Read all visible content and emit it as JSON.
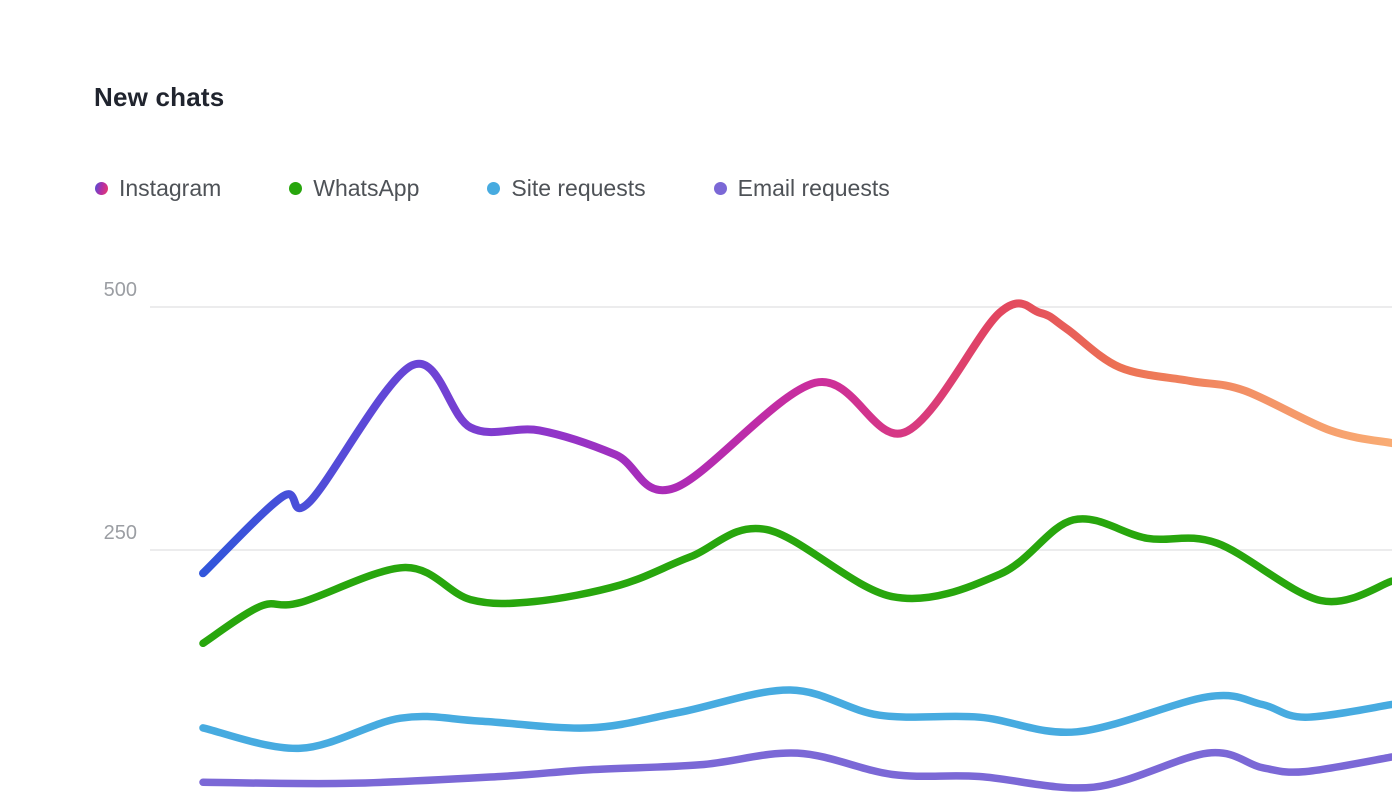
{
  "header": {
    "title": "New chats"
  },
  "legend": {
    "items": [
      {
        "label": "Instagram",
        "dot_gradient": [
          "#4a52d9",
          "#b12fa6",
          "#ed3a67"
        ]
      },
      {
        "label": "WhatsApp",
        "color": "#28a60d"
      },
      {
        "label": "Site requests",
        "color": "#47abe0"
      },
      {
        "label": "Email requests",
        "color": "#7b68d6"
      }
    ]
  },
  "chart_data": {
    "type": "line",
    "title": "New chats",
    "xlabel": "",
    "ylabel": "",
    "x_axis": {
      "labels_visible": false
    },
    "y_axis": {
      "min": 0,
      "max_visible": 520,
      "grid": true,
      "ticks": [
        {
          "value": 500,
          "label": "500"
        },
        {
          "value": 250,
          "label": "250"
        }
      ]
    },
    "legend_position": "top",
    "colors": {
      "grid_line": "#e5e5e7",
      "tick_text": "#9b9ea3",
      "legend_text": "#4e5257",
      "title_text": "#20242e",
      "background": "#ffffff"
    },
    "series": [
      {
        "name": "Instagram",
        "stroke": "gradient",
        "stroke_width": 8,
        "gradient_stops": [
          {
            "at": 0.0,
            "color": "#3156db"
          },
          {
            "at": 0.18,
            "color": "#6a45d6"
          },
          {
            "at": 0.3,
            "color": "#9334c8"
          },
          {
            "at": 0.4,
            "color": "#ae2bb5"
          },
          {
            "at": 0.52,
            "color": "#cc2e9b"
          },
          {
            "at": 0.59,
            "color": "#d73983"
          },
          {
            "at": 0.67,
            "color": "#e2465f"
          },
          {
            "at": 0.77,
            "color": "#ec7154"
          },
          {
            "at": 0.88,
            "color": "#f39166"
          },
          {
            "at": 1.0,
            "color": "#f9ac74"
          }
        ],
        "points": [
          {
            "x": 0.0,
            "v": 226
          },
          {
            "x": 0.067,
            "v": 305
          },
          {
            "x": 0.09,
            "v": 300
          },
          {
            "x": 0.176,
            "v": 440
          },
          {
            "x": 0.225,
            "v": 376
          },
          {
            "x": 0.283,
            "v": 373
          },
          {
            "x": 0.347,
            "v": 348
          },
          {
            "x": 0.397,
            "v": 314
          },
          {
            "x": 0.515,
            "v": 422
          },
          {
            "x": 0.59,
            "v": 371
          },
          {
            "x": 0.67,
            "v": 494
          },
          {
            "x": 0.704,
            "v": 494
          },
          {
            "x": 0.726,
            "v": 478
          },
          {
            "x": 0.771,
            "v": 438
          },
          {
            "x": 0.83,
            "v": 424
          },
          {
            "x": 0.876,
            "v": 414
          },
          {
            "x": 0.948,
            "v": 373
          },
          {
            "x": 1.0,
            "v": 360
          }
        ]
      },
      {
        "name": "WhatsApp",
        "stroke": "#28a60d",
        "stroke_width": 7.5,
        "points": [
          {
            "x": 0.0,
            "v": 154
          },
          {
            "x": 0.048,
            "v": 192
          },
          {
            "x": 0.082,
            "v": 196
          },
          {
            "x": 0.17,
            "v": 232
          },
          {
            "x": 0.225,
            "v": 199
          },
          {
            "x": 0.279,
            "v": 197
          },
          {
            "x": 0.351,
            "v": 214
          },
          {
            "x": 0.41,
            "v": 243
          },
          {
            "x": 0.474,
            "v": 271
          },
          {
            "x": 0.58,
            "v": 202
          },
          {
            "x": 0.67,
            "v": 225
          },
          {
            "x": 0.732,
            "v": 281
          },
          {
            "x": 0.794,
            "v": 262
          },
          {
            "x": 0.853,
            "v": 257
          },
          {
            "x": 0.94,
            "v": 198
          },
          {
            "x": 1.0,
            "v": 218
          }
        ]
      },
      {
        "name": "Site requests",
        "stroke": "#47abe0",
        "stroke_width": 7.5,
        "points": [
          {
            "x": 0.0,
            "v": 67
          },
          {
            "x": 0.082,
            "v": 46
          },
          {
            "x": 0.166,
            "v": 77
          },
          {
            "x": 0.233,
            "v": 74
          },
          {
            "x": 0.325,
            "v": 67
          },
          {
            "x": 0.401,
            "v": 83
          },
          {
            "x": 0.494,
            "v": 106
          },
          {
            "x": 0.569,
            "v": 80
          },
          {
            "x": 0.653,
            "v": 78
          },
          {
            "x": 0.735,
            "v": 63
          },
          {
            "x": 0.845,
            "v": 99
          },
          {
            "x": 0.891,
            "v": 91
          },
          {
            "x": 0.927,
            "v": 78
          },
          {
            "x": 1.0,
            "v": 91
          }
        ]
      },
      {
        "name": "Email requests",
        "stroke": "#7b68d6",
        "stroke_width": 7.5,
        "points": [
          {
            "x": 0.0,
            "v": 11
          },
          {
            "x": 0.124,
            "v": 10
          },
          {
            "x": 0.25,
            "v": 17
          },
          {
            "x": 0.325,
            "v": 24
          },
          {
            "x": 0.418,
            "v": 29
          },
          {
            "x": 0.5,
            "v": 41
          },
          {
            "x": 0.58,
            "v": 19
          },
          {
            "x": 0.653,
            "v": 17
          },
          {
            "x": 0.749,
            "v": 6
          },
          {
            "x": 0.845,
            "v": 41
          },
          {
            "x": 0.891,
            "v": 26
          },
          {
            "x": 0.927,
            "v": 22
          },
          {
            "x": 1.0,
            "v": 37
          }
        ]
      }
    ]
  }
}
